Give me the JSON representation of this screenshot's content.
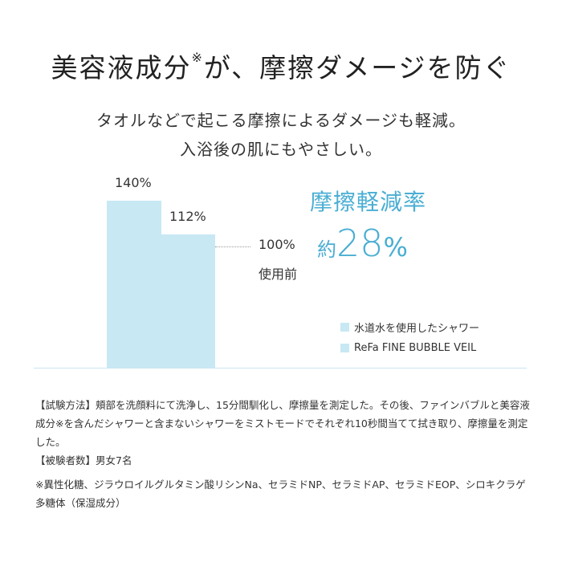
{
  "header": {
    "title_main": "美容液成分",
    "title_mark": "※",
    "title_rest": "が、摩擦ダメージを防ぐ",
    "subtitle_line1": "タオルなどで起こる摩擦によるダメージも軽減。",
    "subtitle_line2": "入浴後の肌にもやさしい。"
  },
  "chart_data": {
    "type": "bar",
    "categories": [
      "水道水を使用したシャワー",
      "ReFa FINE BUBBLE VEIL"
    ],
    "values": [
      140,
      112
    ],
    "value_labels": [
      "140%",
      "112%"
    ],
    "reference_value": 100,
    "reference_labels": [
      "100%",
      "使用前"
    ],
    "ylim": [
      0,
      140
    ],
    "grid": false,
    "legend_position": "right",
    "legend": [
      "水道水を使用したシャワー",
      "ReFa FINE BUBBLE VEIL"
    ],
    "bar_color": "#c8e8f4"
  },
  "highlight": {
    "headline": "摩擦軽減率",
    "prefix": "約",
    "number": "28",
    "unit": "%",
    "color": "#4aaed3"
  },
  "notes": {
    "test_method": "【試験方法】頬部を洗顔料にて洗浄し、15分間馴化し、摩擦量を測定した。その後、ファインバブルと美容液成分※を含んだシャワーと含まないシャワーをミストモードでそれぞれ10秒間当てて拭き取り、摩擦量を測定した。",
    "subjects": "【被験者数】男女7名",
    "ingredients": "※異性化糖、ジラウロイルグルタミン酸リシンNa、セラミドNP、セラミドAP、セラミドEOP、シロキクラゲ多糖体（保湿成分）"
  }
}
